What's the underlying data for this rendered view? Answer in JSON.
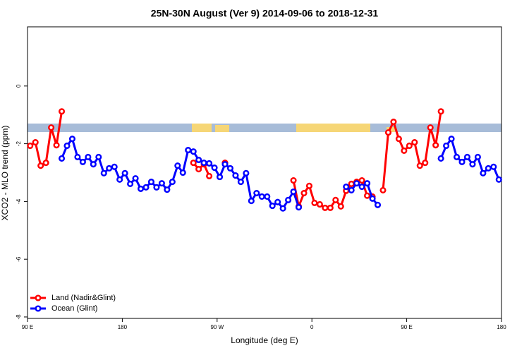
{
  "chart_data": {
    "type": "line",
    "title": "25N-30N August (Ver 9)   2014-09-06 to 2018-12-31",
    "x_label": "Longitude (deg E)",
    "y_label": "XCO2 - MLO trend (ppm)",
    "x": [
      92.5,
      97.5,
      102.5,
      107.5,
      112.5,
      117.5,
      122.5,
      127.5,
      132.5,
      137.5,
      142.5,
      147.5,
      152.5,
      157.5,
      162.5,
      167.5,
      172.5,
      177.5,
      182.5,
      187.5,
      192.5,
      197.5,
      202.5,
      207.5,
      212.5,
      217.5,
      222.5,
      227.5,
      232.5,
      237.5,
      242.5,
      247.5,
      252.5,
      257.5,
      262.5,
      267.5,
      272.5,
      277.5,
      282.5,
      287.5,
      292.5,
      297.5,
      302.5,
      307.5,
      312.5,
      317.5,
      322.5,
      327.5,
      332.5,
      337.5,
      342.5,
      347.5,
      352.5,
      357.5,
      362.5,
      367.5,
      372.5,
      377.5,
      382.5,
      387.5,
      392.5,
      397.5,
      402.5,
      407.5,
      412.5,
      417.5,
      422.5,
      427.5,
      432.5,
      437.5,
      442.5,
      447.5,
      452.5,
      457.5,
      462.5,
      467.5,
      472.5,
      477.5,
      482.5,
      487.5,
      492.5,
      497.5,
      502.5,
      507.5,
      512.5,
      517.5,
      522.5,
      527.5,
      532.5,
      537.5
    ],
    "series": [
      {
        "name": "Land (Nadir&Glint)",
        "color": "#ff0000",
        "values": [
          -2.07,
          -1.95,
          -2.76,
          -2.66,
          -1.44,
          -2.05,
          -0.88,
          null,
          null,
          null,
          null,
          null,
          null,
          null,
          null,
          null,
          null,
          null,
          null,
          null,
          null,
          null,
          null,
          null,
          null,
          null,
          null,
          null,
          null,
          null,
          null,
          -2.66,
          -2.88,
          -2.71,
          -3.12,
          null,
          null,
          -2.66,
          null,
          null,
          null,
          null,
          null,
          null,
          null,
          null,
          null,
          null,
          null,
          null,
          -3.27,
          -4.17,
          -3.71,
          -3.46,
          -4.05,
          -4.1,
          -4.22,
          -4.22,
          -3.95,
          -4.17,
          -3.63,
          -3.39,
          -3.32,
          -3.27,
          -3.8,
          -3.83,
          null,
          -3.61,
          -1.61,
          -1.24,
          -1.83,
          -2.24,
          -2.07,
          -1.95,
          -2.76,
          -2.66,
          -1.44,
          -2.05,
          -0.88,
          null,
          null,
          null,
          null,
          null,
          null,
          null,
          null,
          null,
          null,
          null
        ]
      },
      {
        "name": "Ocean (Glint)",
        "color": "#0000ff",
        "values": [
          null,
          null,
          null,
          null,
          null,
          null,
          -2.51,
          -2.07,
          -1.83,
          -2.46,
          -2.63,
          -2.46,
          -2.71,
          -2.46,
          -3.02,
          -2.85,
          -2.8,
          -3.24,
          -3.02,
          -3.39,
          -3.2,
          -3.56,
          -3.51,
          -3.32,
          -3.51,
          -3.37,
          -3.59,
          -3.32,
          -2.76,
          -3.0,
          -2.22,
          -2.27,
          -2.56,
          -2.66,
          -2.68,
          -2.83,
          -3.15,
          -2.71,
          -2.85,
          -3.1,
          -3.32,
          -3.02,
          -3.98,
          -3.71,
          -3.83,
          -3.83,
          -4.15,
          -4.02,
          -4.24,
          -3.95,
          -3.66,
          -4.2,
          null,
          null,
          null,
          null,
          null,
          null,
          null,
          null,
          -3.49,
          -3.61,
          -3.37,
          -3.49,
          -3.37,
          -3.9,
          -4.12,
          null,
          null,
          null,
          null,
          null,
          null,
          null,
          null,
          null,
          null,
          null,
          -2.51,
          -2.07,
          -1.83,
          -2.46,
          -2.63,
          -2.46,
          -2.71,
          -2.46,
          -3.02,
          -2.85,
          -2.8,
          -3.24
        ]
      }
    ],
    "xlim": [
      90,
      540
    ],
    "xticks": [
      {
        "value": 90,
        "label": "90 E"
      },
      180,
      {
        "value": 270,
        "label": "90 W"
      },
      {
        "value": 360,
        "label": "0"
      },
      {
        "value": 450,
        "label": "90 E"
      },
      {
        "value": 540,
        "label": "180"
      }
    ],
    "ylim": [
      -8.05,
      2.05
    ],
    "yticks": [
      0,
      -2,
      -4,
      -6,
      -8
    ],
    "legend": "bottom-left"
  }
}
